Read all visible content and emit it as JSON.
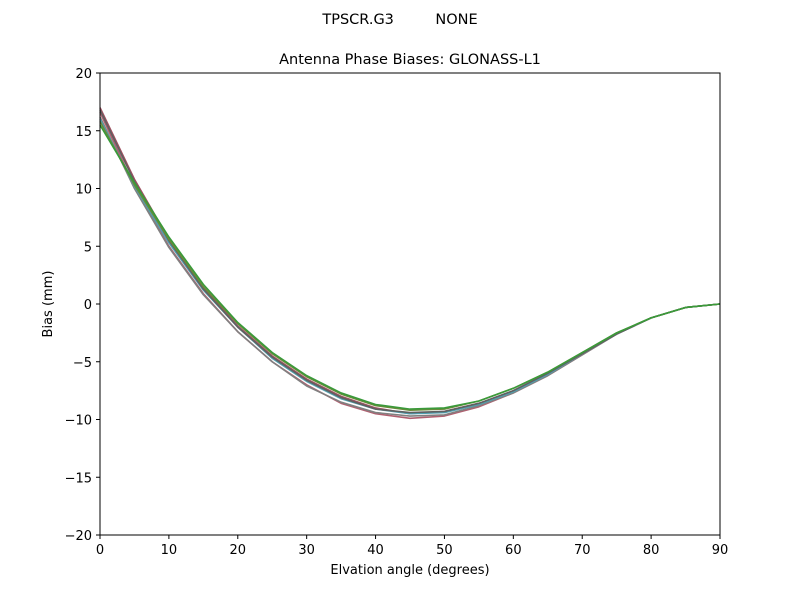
{
  "chart_data": {
    "type": "line",
    "suptitle": "TPSCR.G3         NONE",
    "title": "Antenna Phase Biases: GLONASS-L1",
    "xlabel": "Elvation angle (degrees)",
    "ylabel": "Bias (mm)",
    "xlim": [
      0,
      90
    ],
    "ylim": [
      -20,
      20
    ],
    "xticks": [
      0,
      10,
      20,
      30,
      40,
      50,
      60,
      70,
      80,
      90
    ],
    "yticks": [
      -20,
      -15,
      -10,
      -5,
      0,
      5,
      10,
      15,
      20
    ],
    "ytick_labels": [
      "−20",
      "−15",
      "−10",
      "−5",
      "0",
      "5",
      "10",
      "15",
      "20"
    ],
    "grid": false,
    "legend": "none",
    "x": [
      0,
      5,
      10,
      15,
      20,
      25,
      30,
      35,
      40,
      45,
      50,
      55,
      60,
      65,
      70,
      75,
      80,
      85,
      90
    ],
    "series": [
      {
        "color": "#a05060",
        "values": [
          17.0,
          10.8,
          5.6,
          1.4,
          -1.9,
          -4.5,
          -6.5,
          -8.0,
          -9.0,
          -9.5,
          -9.3,
          -8.6,
          -7.6,
          -6.1,
          -4.3,
          -2.6,
          -1.2,
          -0.3,
          0.0
        ]
      },
      {
        "color": "#b06070",
        "values": [
          16.6,
          10.2,
          5.0,
          0.9,
          -2.4,
          -5.0,
          -7.0,
          -8.6,
          -9.5,
          -9.9,
          -9.7,
          -8.9,
          -7.7,
          -6.2,
          -4.4,
          -2.6,
          -1.2,
          -0.3,
          0.0
        ]
      },
      {
        "color": "#808080",
        "values": [
          16.2,
          10.0,
          4.9,
          0.8,
          -2.4,
          -5.0,
          -7.1,
          -8.5,
          -9.4,
          -9.7,
          -9.6,
          -8.8,
          -7.7,
          -6.2,
          -4.4,
          -2.6,
          -1.2,
          -0.3,
          0.0
        ]
      },
      {
        "color": "#50a0b0",
        "values": [
          16.0,
          10.2,
          5.3,
          1.2,
          -2.0,
          -4.7,
          -6.7,
          -8.2,
          -9.1,
          -9.5,
          -9.4,
          -8.7,
          -7.6,
          -6.1,
          -4.3,
          -2.6,
          -1.2,
          -0.3,
          0.0
        ]
      },
      {
        "color": "#606060",
        "values": [
          16.8,
          10.6,
          5.5,
          1.3,
          -2.0,
          -4.6,
          -6.6,
          -8.1,
          -9.1,
          -9.4,
          -9.3,
          -8.6,
          -7.5,
          -6.0,
          -4.3,
          -2.6,
          -1.2,
          -0.3,
          0.0
        ]
      },
      {
        "color": "#6a8a3a",
        "values": [
          15.8,
          10.3,
          5.6,
          1.5,
          -1.7,
          -4.3,
          -6.3,
          -7.8,
          -8.8,
          -9.2,
          -9.1,
          -8.4,
          -7.3,
          -5.9,
          -4.2,
          -2.5,
          -1.2,
          -0.3,
          0.0
        ]
      },
      {
        "color": "#3a9a3a",
        "values": [
          15.5,
          10.5,
          5.8,
          1.7,
          -1.6,
          -4.2,
          -6.2,
          -7.7,
          -8.7,
          -9.1,
          -9.0,
          -8.4,
          -7.3,
          -5.9,
          -4.2,
          -2.5,
          -1.2,
          -0.3,
          0.0
        ]
      }
    ]
  }
}
